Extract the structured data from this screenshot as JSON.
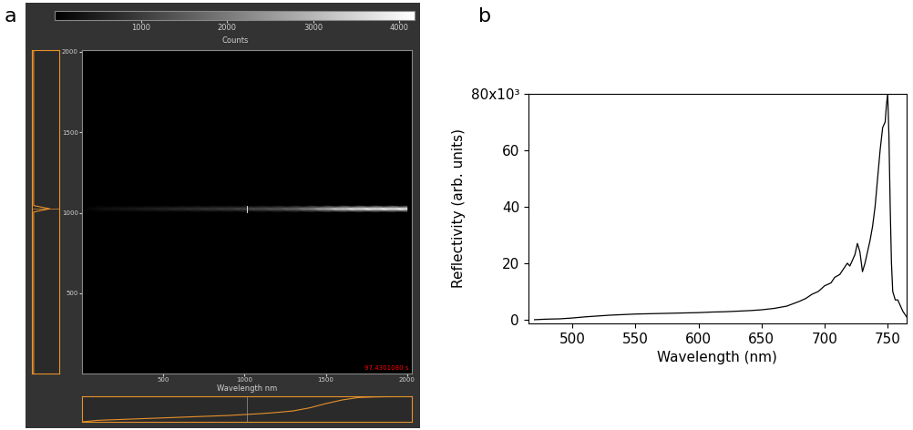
{
  "chart_data": [
    {
      "type": "image",
      "panel_label": "a",
      "colorbar": {
        "label": "Counts",
        "range": [
          0,
          4180
        ],
        "ticks": [
          1000,
          2000,
          3000,
          4000
        ]
      },
      "xlabel": "Wavelength nm",
      "xlim": [
        0,
        2030
      ],
      "xticks": [
        500,
        1000,
        1500,
        2000
      ],
      "ylim": [
        0,
        2010
      ],
      "yticks": [
        500,
        1000,
        1500,
        2000
      ],
      "annotation": "97.4301080 s",
      "cursor": {
        "x": 1017,
        "y": 1025
      },
      "stripe": {
        "y": 1025,
        "width": 20,
        "x": [
          0,
          100,
          200,
          300,
          400,
          500,
          600,
          700,
          800,
          900,
          1000,
          1100,
          1200,
          1300,
          1400,
          1500,
          1600,
          1700,
          1800,
          1900,
          2000
        ],
        "counts": [
          0,
          250,
          350,
          450,
          550,
          650,
          750,
          850,
          950,
          1050,
          1200,
          1350,
          1550,
          1800,
          2300,
          3000,
          3600,
          4000,
          4100,
          4150,
          4180
        ]
      }
    },
    {
      "type": "line",
      "panel_label": "b",
      "xlabel": "Wavelength (nm)",
      "ylabel": "Reflectivity (arb. units)",
      "color": "#000000",
      "xlim": [
        465,
        765
      ],
      "xticks": [
        500,
        550,
        600,
        650,
        700,
        750
      ],
      "ylim": [
        -1.3,
        80
      ],
      "yticks": [
        0,
        20,
        40,
        60,
        {
          "value": 80,
          "label": "80x10³"
        }
      ],
      "x": [
        470,
        480,
        490,
        500,
        510,
        520,
        530,
        540,
        550,
        560,
        570,
        580,
        590,
        600,
        610,
        620,
        630,
        640,
        650,
        660,
        670,
        680,
        685,
        690,
        695,
        700,
        705,
        708,
        712,
        715,
        718,
        720,
        722,
        724,
        726,
        728,
        730,
        732,
        734,
        736,
        738,
        740,
        742,
        744,
        746,
        748,
        749,
        750,
        751,
        752,
        753,
        754,
        756,
        758,
        760,
        762,
        765
      ],
      "values": [
        0,
        0.2,
        0.3,
        0.6,
        1.0,
        1.3,
        1.6,
        1.8,
        2.0,
        2.1,
        2.2,
        2.3,
        2.4,
        2.5,
        2.7,
        2.8,
        3.0,
        3.2,
        3.5,
        4.0,
        4.8,
        6.5,
        7.5,
        9,
        10,
        12,
        13,
        15,
        16,
        18,
        20,
        19,
        21,
        23,
        27,
        24,
        17,
        20,
        24,
        28,
        33,
        40,
        50,
        60,
        68,
        70,
        76,
        80,
        65,
        40,
        20,
        10,
        7,
        7,
        5,
        3,
        1
      ]
    }
  ]
}
